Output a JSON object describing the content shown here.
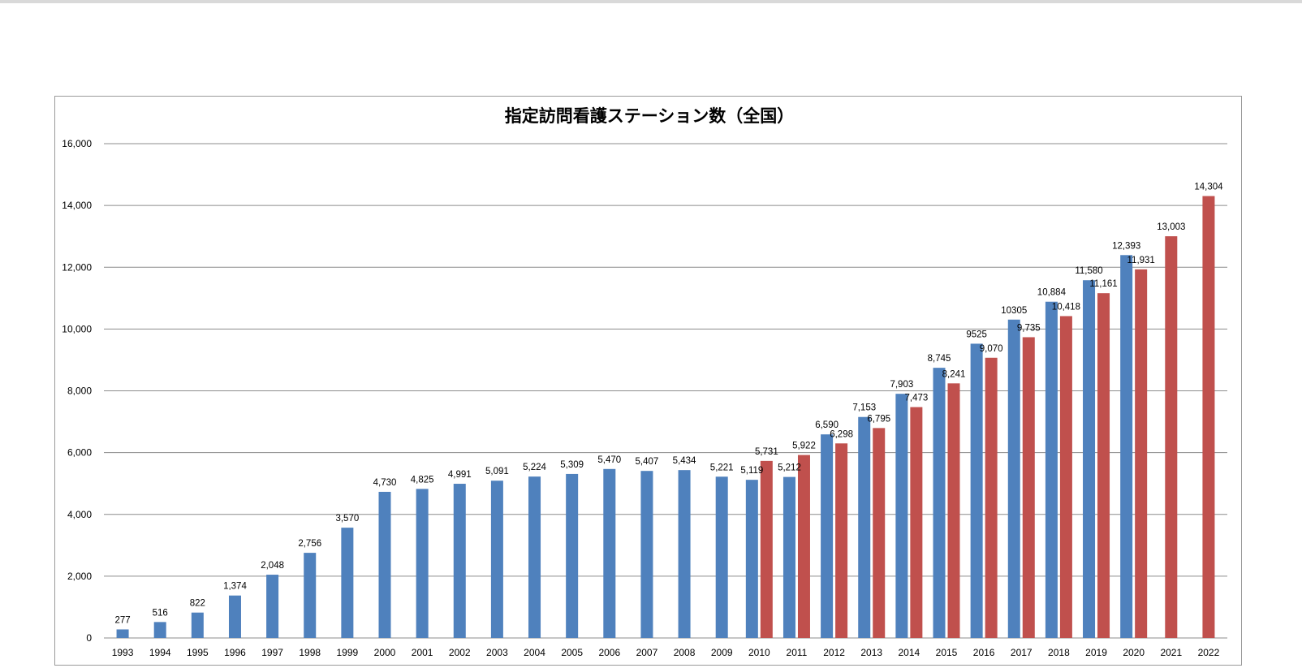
{
  "chart_data": {
    "type": "bar",
    "title": "指定訪問看護ステーション数（全国）",
    "categories": [
      "1993",
      "1994",
      "1995",
      "1996",
      "1997",
      "1998",
      "1999",
      "2000",
      "2001",
      "2002",
      "2003",
      "2004",
      "2005",
      "2006",
      "2007",
      "2008",
      "2009",
      "2010",
      "2011",
      "2012",
      "2013",
      "2014",
      "2015",
      "2016",
      "2017",
      "2018",
      "2019",
      "2020",
      "2021",
      "2022"
    ],
    "series": [
      {
        "color": "#4f81bd",
        "values": [
          277,
          516,
          822,
          1374,
          2048,
          2756,
          3570,
          4730,
          4825,
          4991,
          5091,
          5224,
          5309,
          5470,
          5407,
          5434,
          5221,
          5119,
          5212,
          6590,
          7153,
          7903,
          8745,
          9525,
          10305,
          10884,
          11580,
          12393,
          null,
          null
        ],
        "labels": [
          "277",
          "516",
          "822",
          "1,374",
          "2,048",
          "2,756",
          "3,570",
          "4,730",
          "4,825",
          "4,991",
          "5,091",
          "5,224",
          "5,309",
          "5,470",
          "5,407",
          "5,434",
          "5,221",
          "5,119",
          "5,212",
          "6,590",
          "7,153",
          "7,903",
          "8,745",
          "9525",
          "10305",
          "10,884",
          "11,580",
          "12,393",
          null,
          null
        ]
      },
      {
        "color": "#c0504d",
        "values": [
          null,
          null,
          null,
          null,
          null,
          null,
          null,
          null,
          null,
          null,
          null,
          null,
          null,
          null,
          null,
          null,
          null,
          5731,
          5922,
          6298,
          6795,
          7473,
          8241,
          9070,
          9735,
          10418,
          11161,
          11931,
          13003,
          14304
        ],
        "labels": [
          null,
          null,
          null,
          null,
          null,
          null,
          null,
          null,
          null,
          null,
          null,
          null,
          null,
          null,
          null,
          null,
          null,
          "5,731",
          "5,922",
          "6,298",
          "6,795",
          "7,473",
          "8,241",
          "9,070",
          "9,735",
          "10,418",
          "11,161",
          "11,931",
          "13,003",
          "14,304"
        ]
      }
    ],
    "ylim": [
      0,
      16000
    ],
    "yticks": [
      0,
      2000,
      4000,
      6000,
      8000,
      10000,
      12000,
      14000,
      16000
    ],
    "ytick_labels": [
      "0",
      "2,000",
      "4,000",
      "6,000",
      "8,000",
      "10,000",
      "12,000",
      "14,000",
      "16,000"
    ],
    "grid": true,
    "legend": "none"
  }
}
